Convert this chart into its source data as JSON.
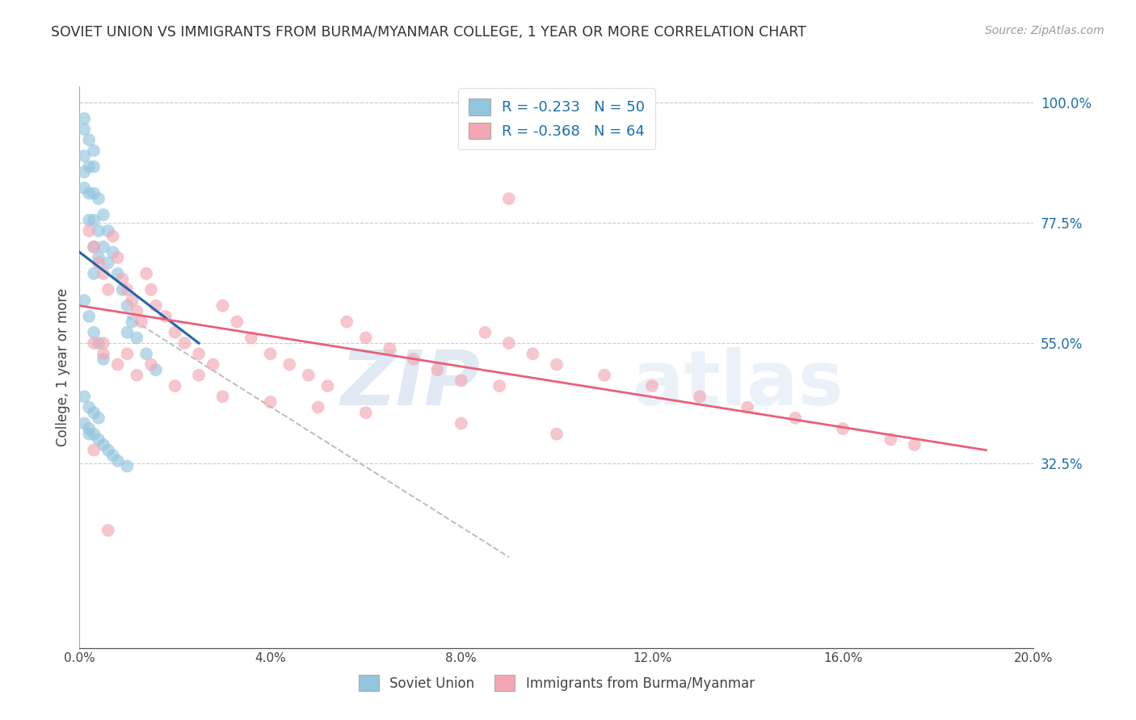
{
  "title": "SOVIET UNION VS IMMIGRANTS FROM BURMA/MYANMAR COLLEGE, 1 YEAR OR MORE CORRELATION CHART",
  "source": "Source: ZipAtlas.com",
  "ylabel": "College, 1 year or more",
  "legend_label1": "Soviet Union",
  "legend_label2": "Immigrants from Burma/Myanmar",
  "r1": -0.233,
  "n1": 50,
  "r2": -0.368,
  "n2": 64,
  "color_blue": "#92c5de",
  "color_pink": "#f4a7b2",
  "color_blue_line": "#2166ac",
  "color_pink_line": "#e8607a",
  "color_dashed": "#bbbbbb",
  "xmin": 0.0,
  "xmax": 0.2,
  "ymin": 0.0,
  "ymax": 1.0,
  "ytick_vals": [
    0.325,
    0.55,
    0.775,
    1.0
  ],
  "ytick_labels": [
    "32.5%",
    "55.0%",
    "77.5%",
    "100.0%"
  ],
  "xtick_vals": [
    0.0,
    0.04,
    0.08,
    0.12,
    0.16,
    0.2
  ],
  "xtick_labels": [
    "0.0%",
    "4.0%",
    "8.0%",
    "12.0%",
    "16.0%",
    "20.0%"
  ],
  "watermark_zip": "ZIP",
  "watermark_atlas": "atlas",
  "background_color": "#ffffff",
  "grid_color": "#cccccc",
  "blue_scatter_x": [
    0.001,
    0.001,
    0.001,
    0.001,
    0.001,
    0.002,
    0.002,
    0.002,
    0.002,
    0.003,
    0.003,
    0.003,
    0.003,
    0.003,
    0.003,
    0.004,
    0.004,
    0.004,
    0.005,
    0.005,
    0.006,
    0.006,
    0.007,
    0.008,
    0.009,
    0.01,
    0.01,
    0.011,
    0.012,
    0.014,
    0.016,
    0.001,
    0.002,
    0.003,
    0.004,
    0.005,
    0.001,
    0.002,
    0.003,
    0.004,
    0.001,
    0.002,
    0.002,
    0.003,
    0.004,
    0.005,
    0.006,
    0.007,
    0.008,
    0.01
  ],
  "blue_scatter_y": [
    0.97,
    0.95,
    0.9,
    0.87,
    0.84,
    0.93,
    0.88,
    0.83,
    0.78,
    0.91,
    0.88,
    0.83,
    0.78,
    0.73,
    0.68,
    0.82,
    0.76,
    0.71,
    0.79,
    0.73,
    0.76,
    0.7,
    0.72,
    0.68,
    0.65,
    0.62,
    0.57,
    0.59,
    0.56,
    0.53,
    0.5,
    0.63,
    0.6,
    0.57,
    0.55,
    0.52,
    0.45,
    0.43,
    0.42,
    0.41,
    0.4,
    0.38,
    0.39,
    0.38,
    0.37,
    0.36,
    0.35,
    0.34,
    0.33,
    0.32
  ],
  "pink_scatter_x": [
    0.002,
    0.003,
    0.004,
    0.005,
    0.006,
    0.007,
    0.008,
    0.009,
    0.01,
    0.011,
    0.012,
    0.013,
    0.014,
    0.015,
    0.016,
    0.018,
    0.02,
    0.022,
    0.025,
    0.028,
    0.03,
    0.033,
    0.036,
    0.04,
    0.044,
    0.048,
    0.052,
    0.056,
    0.06,
    0.065,
    0.07,
    0.075,
    0.08,
    0.085,
    0.09,
    0.095,
    0.1,
    0.11,
    0.12,
    0.13,
    0.14,
    0.15,
    0.16,
    0.17,
    0.175,
    0.003,
    0.005,
    0.008,
    0.012,
    0.02,
    0.03,
    0.05,
    0.005,
    0.01,
    0.015,
    0.025,
    0.04,
    0.06,
    0.08,
    0.1,
    0.09,
    0.088,
    0.003,
    0.006
  ],
  "pink_scatter_y": [
    0.76,
    0.73,
    0.7,
    0.68,
    0.65,
    0.75,
    0.71,
    0.67,
    0.65,
    0.63,
    0.61,
    0.59,
    0.68,
    0.65,
    0.62,
    0.6,
    0.57,
    0.55,
    0.53,
    0.51,
    0.62,
    0.59,
    0.56,
    0.53,
    0.51,
    0.49,
    0.47,
    0.59,
    0.56,
    0.54,
    0.52,
    0.5,
    0.48,
    0.57,
    0.55,
    0.53,
    0.51,
    0.49,
    0.47,
    0.45,
    0.43,
    0.41,
    0.39,
    0.37,
    0.36,
    0.55,
    0.53,
    0.51,
    0.49,
    0.47,
    0.45,
    0.43,
    0.55,
    0.53,
    0.51,
    0.49,
    0.44,
    0.42,
    0.4,
    0.38,
    0.82,
    0.47,
    0.35,
    0.2
  ],
  "blue_line_x": [
    0.0,
    0.025
  ],
  "blue_line_y": [
    0.72,
    0.55
  ],
  "pink_line_x": [
    0.0,
    0.19
  ],
  "pink_line_y": [
    0.62,
    0.35
  ],
  "dashed_line_x": [
    0.01,
    0.09
  ],
  "dashed_line_y": [
    0.6,
    0.15
  ]
}
